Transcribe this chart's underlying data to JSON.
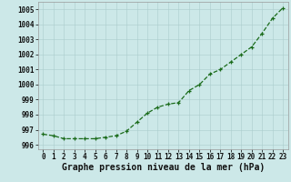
{
  "x": [
    0,
    1,
    2,
    3,
    4,
    5,
    6,
    7,
    8,
    9,
    10,
    11,
    12,
    13,
    14,
    15,
    16,
    17,
    18,
    19,
    20,
    21,
    22,
    23
  ],
  "y": [
    996.7,
    996.6,
    996.4,
    996.4,
    996.4,
    996.4,
    996.5,
    996.6,
    996.9,
    997.5,
    998.1,
    998.5,
    998.7,
    998.8,
    999.6,
    1000.0,
    1000.7,
    1001.0,
    1001.5,
    1002.0,
    1002.5,
    1003.4,
    1004.4,
    1005.1
  ],
  "line_color": "#1a6b1a",
  "marker_color": "#1a6b1a",
  "bg_color": "#cce8e8",
  "grid_color": "#aacccc",
  "xlabel": "Graphe pression niveau de la mer (hPa)",
  "ylim": [
    995.7,
    1005.5
  ],
  "xlim": [
    -0.5,
    23.5
  ],
  "yticks": [
    996,
    997,
    998,
    999,
    1000,
    1001,
    1002,
    1003,
    1004,
    1005
  ],
  "xticks": [
    0,
    1,
    2,
    3,
    4,
    5,
    6,
    7,
    8,
    9,
    10,
    11,
    12,
    13,
    14,
    15,
    16,
    17,
    18,
    19,
    20,
    21,
    22,
    23
  ],
  "tick_fontsize": 5.5,
  "xlabel_fontsize": 7.0,
  "linewidth": 0.9,
  "markersize": 3.5
}
